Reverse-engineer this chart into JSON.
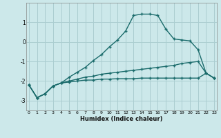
{
  "xlabel": "Humidex (Indice chaleur)",
  "background_color": "#cce8ea",
  "grid_color": "#aacdd0",
  "line_color": "#1a6b6b",
  "x_values": [
    0,
    1,
    2,
    3,
    4,
    5,
    6,
    7,
    8,
    9,
    10,
    11,
    12,
    13,
    14,
    15,
    16,
    17,
    18,
    19,
    20,
    21,
    22,
    23
  ],
  "series1": [
    -2.2,
    -2.85,
    -2.65,
    -2.25,
    -2.1,
    -1.8,
    -1.55,
    -1.3,
    -0.95,
    -0.65,
    -0.25,
    0.1,
    0.55,
    1.35,
    1.42,
    1.42,
    1.35,
    0.65,
    0.15,
    0.1,
    0.05,
    -0.4,
    -1.6,
    -1.85
  ],
  "series2": [
    -2.2,
    -2.85,
    -2.65,
    -2.25,
    -2.1,
    -2.0,
    -1.9,
    -1.8,
    -1.75,
    -1.65,
    -1.6,
    -1.55,
    -1.5,
    -1.45,
    -1.4,
    -1.35,
    -1.3,
    -1.25,
    -1.2,
    -1.1,
    -1.05,
    -1.0,
    -1.6,
    -1.85
  ],
  "series3": [
    -2.2,
    -2.85,
    -2.65,
    -2.25,
    -2.1,
    -2.05,
    -2.0,
    -1.95,
    -1.95,
    -1.9,
    -1.9,
    -1.88,
    -1.88,
    -1.88,
    -1.85,
    -1.85,
    -1.85,
    -1.85,
    -1.85,
    -1.85,
    -1.85,
    -1.85,
    -1.6,
    -1.85
  ],
  "ylim": [
    -3.5,
    2.0
  ],
  "xlim": [
    -0.3,
    23.3
  ],
  "yticks": [
    -3,
    -2,
    -1,
    0,
    1
  ],
  "xticks": [
    0,
    1,
    2,
    3,
    4,
    5,
    6,
    7,
    8,
    9,
    10,
    11,
    12,
    13,
    14,
    15,
    16,
    17,
    18,
    19,
    20,
    21,
    22,
    23
  ]
}
